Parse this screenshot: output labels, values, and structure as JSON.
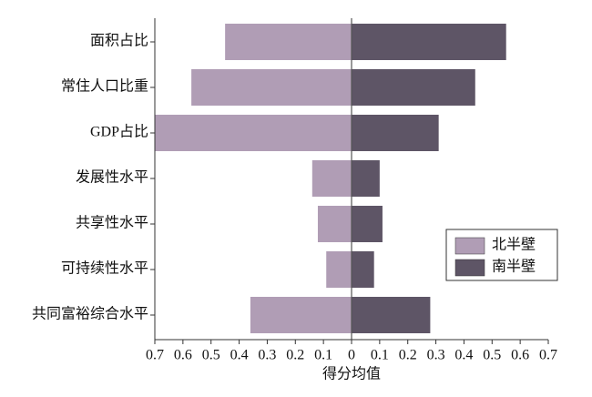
{
  "chart_data": {
    "type": "diverging-bar",
    "xlabel": "得分均值",
    "categories": [
      "面积占比",
      "常住人口比重",
      "GDP占比",
      "发展性水平",
      "共享性水平",
      "可持续性水平",
      "共同富裕综合水平"
    ],
    "series": [
      {
        "name": "北半壁",
        "color": "#b09db5",
        "values": [
          -0.45,
          -0.57,
          -0.7,
          -0.14,
          -0.12,
          -0.09,
          -0.36
        ]
      },
      {
        "name": "南半壁",
        "color": "#5e5566",
        "values": [
          0.55,
          0.44,
          0.31,
          0.1,
          0.11,
          0.08,
          0.28
        ]
      }
    ],
    "xlim": [
      -0.7,
      0.7
    ],
    "xticks": [
      {
        "value": -0.7,
        "label": "0.7"
      },
      {
        "value": -0.6,
        "label": "0.6"
      },
      {
        "value": -0.5,
        "label": "0.5"
      },
      {
        "value": -0.4,
        "label": "0.4"
      },
      {
        "value": -0.3,
        "label": "0.3"
      },
      {
        "value": -0.2,
        "label": "0.2"
      },
      {
        "value": -0.1,
        "label": "0.1"
      },
      0,
      0.1,
      0.2,
      0.3,
      0.4,
      0.5,
      0.6,
      0.7
    ],
    "legend": "right"
  }
}
